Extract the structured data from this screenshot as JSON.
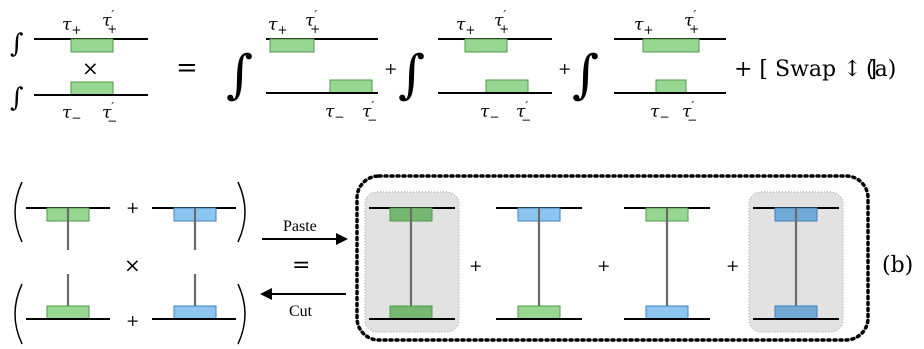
{
  "part_a": {
    "label": "(a)",
    "tau_plus": "τ",
    "tau_plus_sub": "+",
    "tau_minus": "τ",
    "tau_minus_sub": "−",
    "prime": "′",
    "integral": "∫",
    "times": "×",
    "equals": "=",
    "plus": "+",
    "swap_text": "+ [ Swap ↕ ]"
  },
  "part_b": {
    "label": "(b)",
    "paste_label": "Paste",
    "cut_label": "Cut",
    "equals": "=",
    "times": "×",
    "plus": "+"
  },
  "colors": {
    "green_fill": "#97d791",
    "green_stroke": "#4f9a49",
    "blue_fill": "#8cc6f0",
    "blue_stroke": "#3d82bd",
    "shade_fill": "#e2e2e2",
    "green_dark_fill": "#76b871",
    "blue_dark_fill": "#72a9d6"
  }
}
